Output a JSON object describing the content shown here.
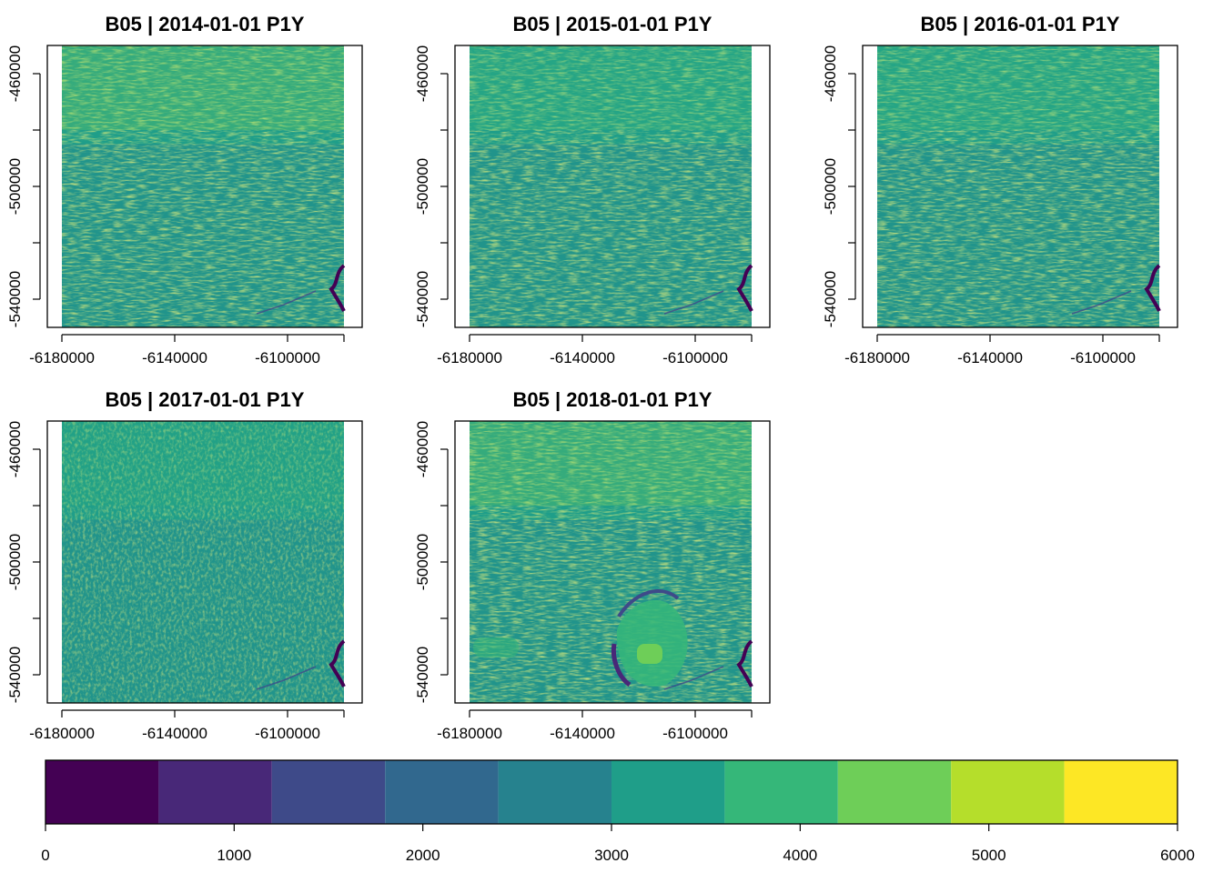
{
  "chart_data": {
    "type": "heatmap",
    "panels": [
      {
        "title": "B05 | 2014-01-01 P1Y",
        "band": "B05",
        "date": "2014-01-01",
        "period": "P1Y",
        "dominant_value": 3400,
        "bright_value": 4300,
        "texture": "streaked"
      },
      {
        "title": "B05 | 2015-01-01 P1Y",
        "band": "B05",
        "date": "2015-01-01",
        "period": "P1Y",
        "dominant_value": 3300,
        "bright_value": 4100,
        "texture": "streaked"
      },
      {
        "title": "B05 | 2016-01-01 P1Y",
        "band": "B05",
        "date": "2016-01-01",
        "period": "P1Y",
        "dominant_value": 3300,
        "bright_value": 4100,
        "texture": "streaked"
      },
      {
        "title": "B05 | 2017-01-01 P1Y",
        "band": "B05",
        "date": "2017-01-01",
        "period": "P1Y",
        "dominant_value": 3300,
        "bright_value": 3900,
        "texture": "smooth"
      },
      {
        "title": "B05 | 2018-01-01 P1Y",
        "band": "B05",
        "date": "2018-01-01",
        "period": "P1Y",
        "dominant_value": 3200,
        "bright_value": 4300,
        "texture": "streaked-burn"
      }
    ],
    "x_ticks": [
      -6180000,
      -6140000,
      -6100000
    ],
    "y_ticks": [
      -460000,
      -500000,
      -540000
    ],
    "x_tick_labels": [
      "-6180000",
      "-6140000",
      "-6100000"
    ],
    "y_tick_labels": [
      "-460000",
      "-500000",
      "-540000"
    ],
    "xlim": [
      -6180000,
      -6080000
    ],
    "ylim": [
      -550000,
      -450000
    ],
    "legend": {
      "position": "bottom",
      "breaks": [
        0,
        600,
        1200,
        1800,
        2400,
        3000,
        3600,
        4200,
        4800,
        5400,
        6000
      ],
      "colors": [
        "#440154",
        "#482878",
        "#3E4A89",
        "#31688E",
        "#26828E",
        "#1F9E89",
        "#35B779",
        "#6ECE58",
        "#B5DE2B",
        "#FDE725"
      ],
      "tick_values": [
        0,
        1000,
        2000,
        3000,
        4000,
        5000,
        6000
      ],
      "tick_labels": [
        "0",
        "1000",
        "2000",
        "3000",
        "4000",
        "5000",
        "6000"
      ]
    }
  }
}
